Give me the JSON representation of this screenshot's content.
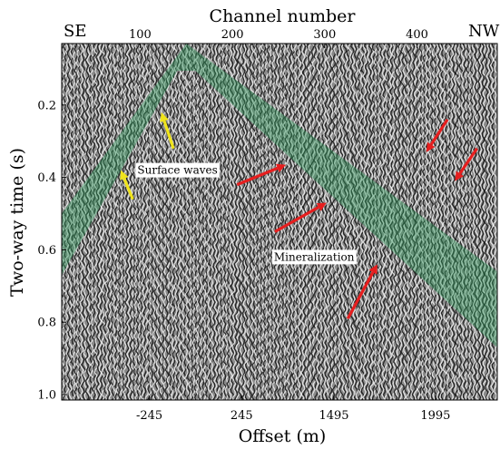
{
  "chart_data": {
    "type": "seismic-section",
    "top_axis": {
      "label": "Channel number",
      "ticks": [
        100,
        200,
        300,
        400
      ],
      "range": [
        15,
        487
      ]
    },
    "bottom_axis": {
      "label": "Offset (m)",
      "ticks": [
        "-245",
        "245",
        "1495",
        "1995"
      ],
      "tick_channels": [
        110,
        210,
        310,
        420
      ]
    },
    "left_axis": {
      "label": "Two-way time (s)",
      "ticks": [
        "0.2",
        "0.4",
        "0.6",
        "0.8",
        "1.0"
      ],
      "tick_values": [
        0.2,
        0.4,
        0.6,
        0.8,
        1.0
      ],
      "range": [
        0.03,
        1.015
      ]
    },
    "direction_labels": {
      "left": "SE",
      "right": "NW"
    },
    "annotations": [
      {
        "text": "Surface waves",
        "at": {
          "channel": 97,
          "time": 0.39
        }
      },
      {
        "text": "Mineralization",
        "at": {
          "channel": 245,
          "time": 0.63
        }
      }
    ],
    "surface_wave_zone": {
      "color": "#2f9a5e",
      "apex": {
        "channel": 150,
        "time": 0.03
      },
      "left_edge": {
        "time_upper": 0.5,
        "time_lower": 0.67,
        "channel": 15
      },
      "right_edge": {
        "time_upper": 0.66,
        "time_lower": 0.87,
        "channel": 487
      }
    },
    "arrows": [
      {
        "color": "#f0e41c",
        "from": {
          "channel": 92,
          "time": 0.46
        },
        "to": {
          "channel": 79,
          "time": 0.38
        }
      },
      {
        "color": "#f0e41c",
        "from": {
          "channel": 136,
          "time": 0.32
        },
        "to": {
          "channel": 123,
          "time": 0.22
        }
      },
      {
        "color": "#e61e1e",
        "from": {
          "channel": 205,
          "time": 0.42
        },
        "to": {
          "channel": 258,
          "time": 0.365
        }
      },
      {
        "color": "#e61e1e",
        "from": {
          "channel": 246,
          "time": 0.55
        },
        "to": {
          "channel": 302,
          "time": 0.47
        }
      },
      {
        "color": "#e61e1e",
        "from": {
          "channel": 325,
          "time": 0.79
        },
        "to": {
          "channel": 357,
          "time": 0.64
        }
      },
      {
        "color": "#e61e1e",
        "from": {
          "channel": 433,
          "time": 0.24
        },
        "to": {
          "channel": 410,
          "time": 0.33
        }
      },
      {
        "color": "#e61e1e",
        "from": {
          "channel": 465,
          "time": 0.32
        },
        "to": {
          "channel": 441,
          "time": 0.41
        }
      }
    ]
  }
}
